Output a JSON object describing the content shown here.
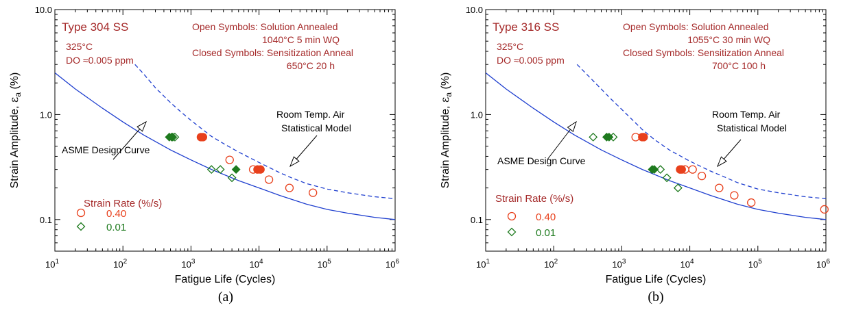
{
  "chart_data": [
    {
      "type": "scatter",
      "panel_caption": "(a)",
      "xlabel": "Fatigue Life (Cycles)",
      "ylabel_main": "Strain Amplitude,  ",
      "ylabel_symbol": "ε",
      "ylabel_sub": "a",
      "ylabel_unit": " (%)",
      "xscale": "log",
      "yscale": "log",
      "xlim": [
        10,
        1000000
      ],
      "ylim": [
        0.05,
        10
      ],
      "xticks": [
        {
          "base": "10",
          "exp": "1"
        },
        {
          "base": "10",
          "exp": "2"
        },
        {
          "base": "10",
          "exp": "3"
        },
        {
          "base": "10",
          "exp": "4"
        },
        {
          "base": "10",
          "exp": "5"
        },
        {
          "base": "10",
          "exp": "6"
        }
      ],
      "xtick_values": [
        10,
        100,
        1000,
        10000,
        100000,
        1000000
      ],
      "yticks": [
        "0.1",
        "1.0",
        "10.0"
      ],
      "ytick_values": [
        0.1,
        1.0,
        10.0
      ],
      "material": "Type 304 SS",
      "conditions": [
        "325°C",
        "DO ≈0.005 ppm"
      ],
      "notes": [
        "Open Symbols: Solution Annealed",
        "1040°C 5 min WQ",
        "Closed Symbols: Sensitization Anneal",
        "650°C 20 h"
      ],
      "curve_labels": {
        "design": "ASME Design Curve",
        "air_line1": "Room Temp. Air",
        "air_line2": "Statistical Model"
      },
      "legend_title": "Strain Rate (%/s)",
      "legend": [
        {
          "label": "0.40",
          "marker": "circle",
          "color": "#e8401c"
        },
        {
          "label": "0.01",
          "marker": "diamond",
          "color": "#1e7a1e"
        }
      ],
      "curves": {
        "design": {
          "x": [
            10,
            20,
            50,
            100,
            200,
            500,
            1000,
            2000,
            5000,
            10000,
            20000,
            50000,
            100000,
            200000,
            500000,
            1000000
          ],
          "y": [
            2.5,
            1.75,
            1.15,
            0.85,
            0.64,
            0.46,
            0.37,
            0.3,
            0.235,
            0.2,
            0.17,
            0.14,
            0.125,
            0.115,
            0.105,
            0.1
          ]
        },
        "air": {
          "x": [
            150,
            200,
            300,
            500,
            700,
            1000,
            2000,
            3000,
            5000,
            10000,
            20000,
            30000,
            50000,
            100000,
            200000,
            500000,
            1000000
          ],
          "y": [
            3.0,
            2.45,
            1.8,
            1.3,
            1.07,
            0.88,
            0.62,
            0.53,
            0.44,
            0.35,
            0.28,
            0.25,
            0.22,
            0.195,
            0.18,
            0.165,
            0.158
          ]
        }
      },
      "series": [
        {
          "marker": "circle",
          "fill": "open",
          "rate": "0.40",
          "color": "#e8401c",
          "x": [
            3700,
            8200,
            14000,
            28000,
            62000
          ],
          "y": [
            0.37,
            0.3,
            0.24,
            0.2,
            0.18
          ]
        },
        {
          "marker": "circle",
          "fill": "closed",
          "rate": "0.40",
          "color": "#e8401c",
          "x": [
            1400,
            1500,
            9500,
            10500
          ],
          "y": [
            0.61,
            0.61,
            0.3,
            0.3
          ]
        },
        {
          "marker": "diamond",
          "fill": "open",
          "rate": "0.01",
          "color": "#1e7a1e",
          "x": [
            540,
            580,
            2000,
            2700,
            4000
          ],
          "y": [
            0.61,
            0.61,
            0.3,
            0.3,
            0.25
          ]
        },
        {
          "marker": "diamond",
          "fill": "closed",
          "rate": "0.01",
          "color": "#1e7a1e",
          "x": [
            480,
            520,
            4600
          ],
          "y": [
            0.61,
            0.61,
            0.3
          ]
        }
      ]
    },
    {
      "type": "scatter",
      "panel_caption": "(b)",
      "xlabel": "Fatigue Life (Cycles)",
      "ylabel_main": "Strain Amplitude,  ",
      "ylabel_symbol": "ε",
      "ylabel_sub": "a",
      "ylabel_unit": " (%)",
      "xscale": "log",
      "yscale": "log",
      "xlim": [
        10,
        1000000
      ],
      "ylim": [
        0.05,
        10
      ],
      "xticks": [
        {
          "base": "10",
          "exp": "1"
        },
        {
          "base": "10",
          "exp": "2"
        },
        {
          "base": "10",
          "exp": "3"
        },
        {
          "base": "10",
          "exp": "4"
        },
        {
          "base": "10",
          "exp": "5"
        },
        {
          "base": "10",
          "exp": "6"
        }
      ],
      "xtick_values": [
        10,
        100,
        1000,
        10000,
        100000,
        1000000
      ],
      "yticks": [
        "0.1",
        "1.0",
        "10.0"
      ],
      "ytick_values": [
        0.1,
        1.0,
        10.0
      ],
      "material": "Type 316 SS",
      "conditions": [
        "325°C",
        "DO ≈0.005 ppm"
      ],
      "notes": [
        "Open Symbols: Solution Annealed",
        "1055°C 30 min WQ",
        "Closed Symbols: Sensitization Anneal",
        "700°C 100 h"
      ],
      "curve_labels": {
        "design": "ASME Design Curve",
        "air_line1": "Room Temp. Air",
        "air_line2": "Statistical Model"
      },
      "legend_title": "Strain Rate (%/s)",
      "legend": [
        {
          "label": "0.40",
          "marker": "circle",
          "color": "#e8401c"
        },
        {
          "label": "0.01",
          "marker": "diamond",
          "color": "#1e7a1e"
        }
      ],
      "curves": {
        "design": {
          "x": [
            10,
            20,
            50,
            100,
            200,
            500,
            1000,
            2000,
            5000,
            10000,
            20000,
            50000,
            100000,
            200000,
            500000,
            1000000
          ],
          "y": [
            2.5,
            1.75,
            1.15,
            0.85,
            0.64,
            0.46,
            0.37,
            0.3,
            0.235,
            0.2,
            0.17,
            0.14,
            0.125,
            0.115,
            0.105,
            0.1
          ]
        },
        "air": {
          "x": [
            220,
            300,
            500,
            700,
            1000,
            2000,
            3000,
            5000,
            10000,
            20000,
            30000,
            50000,
            100000,
            200000,
            500000,
            1000000
          ],
          "y": [
            3.0,
            2.45,
            1.75,
            1.4,
            1.12,
            0.72,
            0.58,
            0.46,
            0.36,
            0.29,
            0.26,
            0.225,
            0.195,
            0.18,
            0.165,
            0.158
          ]
        }
      },
      "series": [
        {
          "marker": "circle",
          "fill": "open",
          "rate": "0.40",
          "color": "#e8401c",
          "x": [
            1600,
            8500,
            11000,
            15000,
            27000,
            45000,
            80000,
            950000
          ],
          "y": [
            0.61,
            0.3,
            0.3,
            0.26,
            0.2,
            0.17,
            0.145,
            0.125
          ]
        },
        {
          "marker": "circle",
          "fill": "closed",
          "rate": "0.40",
          "color": "#e8401c",
          "x": [
            2000,
            2100,
            7200,
            7600
          ],
          "y": [
            0.61,
            0.61,
            0.3,
            0.3
          ]
        },
        {
          "marker": "diamond",
          "fill": "open",
          "rate": "0.01",
          "color": "#1e7a1e",
          "x": [
            380,
            750,
            3700,
            4600,
            6700
          ],
          "y": [
            0.61,
            0.61,
            0.3,
            0.25,
            0.2
          ]
        },
        {
          "marker": "diamond",
          "fill": "closed",
          "rate": "0.01",
          "color": "#1e7a1e",
          "x": [
            600,
            650,
            2800,
            3000
          ],
          "y": [
            0.61,
            0.61,
            0.3,
            0.3
          ]
        }
      ]
    }
  ]
}
